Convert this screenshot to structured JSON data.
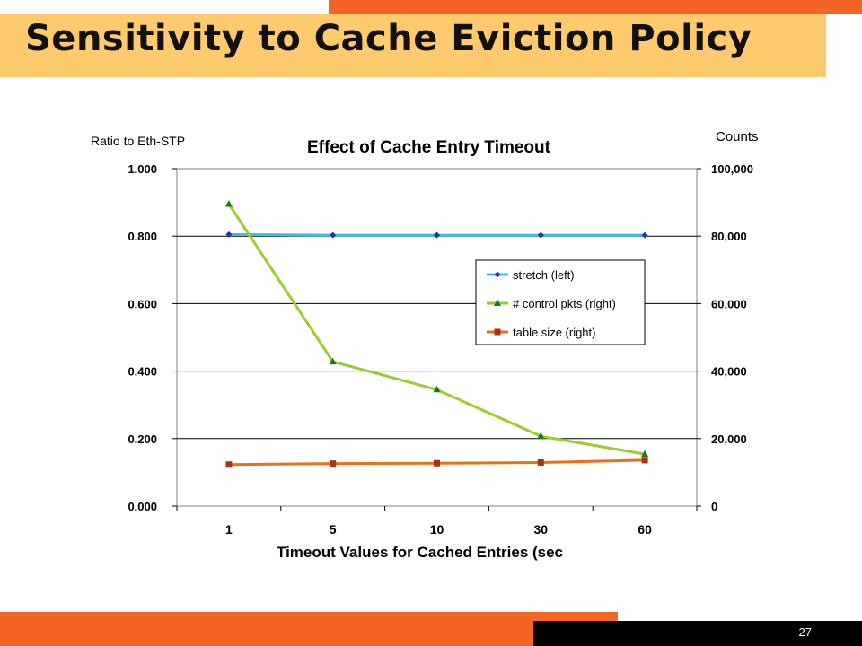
{
  "slide": {
    "title": "Sensitivity to Cache Eviction Policy",
    "page_number": "27"
  },
  "colors": {
    "top_bar": "#f26522",
    "title_band": "#fdcb6e",
    "footer_orange": "#f26522",
    "footer_black": "#000000",
    "stretch": "#3cbde6",
    "stretch_marker": "#2233aa",
    "control": "#9acd32",
    "control_marker": "#1a7a1a",
    "table": "#e8701c",
    "table_marker": "#b03010"
  },
  "chart_data": {
    "type": "line",
    "title": "Effect of Cache Entry Timeout",
    "xlabel": "Timeout Values for Cached Entries (sec",
    "ylabel_left": "Ratio to Eth-STP",
    "ylabel_right": "Counts",
    "categories": [
      "1",
      "5",
      "10",
      "30",
      "60"
    ],
    "y_left": {
      "range": [
        0,
        1
      ],
      "ticks": [
        "0.000",
        "0.200",
        "0.400",
        "0.600",
        "0.800",
        "1.000"
      ]
    },
    "y_right": {
      "range": [
        0,
        100000
      ],
      "ticks": [
        "0",
        "20,000",
        "40,000",
        "60,000",
        "80,000",
        "100,000"
      ]
    },
    "grid": true,
    "legend_position": "right-center",
    "series": [
      {
        "name": "stretch (left)",
        "axis": "left",
        "marker": "diamond",
        "values": [
          0.805,
          0.803,
          0.803,
          0.803,
          0.803
        ]
      },
      {
        "name": "# control pkts (right)",
        "axis": "right",
        "marker": "triangle",
        "values": [
          89500,
          42800,
          34500,
          20700,
          15400
        ]
      },
      {
        "name": "table size (right)",
        "axis": "right",
        "marker": "square",
        "values": [
          12300,
          12600,
          12700,
          12900,
          13600
        ]
      }
    ]
  }
}
